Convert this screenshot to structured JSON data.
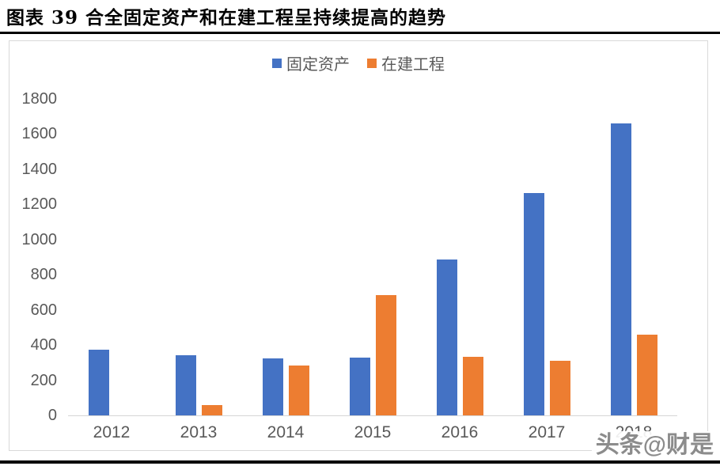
{
  "page": {
    "title": "图表 39 合全固定资产和在建工程呈持续提高的趋势",
    "watermark": "头条@财是"
  },
  "chart_data": {
    "type": "bar",
    "title": "",
    "categories": [
      "2012",
      "2013",
      "2014",
      "2015",
      "2016",
      "2017",
      "2018"
    ],
    "series": [
      {
        "name": "固定资产",
        "color": "#4472C4",
        "values": [
          375,
          340,
          325,
          330,
          885,
          1265,
          1660
        ]
      },
      {
        "name": "在建工程",
        "color": "#ED7D31",
        "values": [
          0,
          60,
          285,
          685,
          335,
          310,
          460
        ]
      }
    ],
    "xlabel": "",
    "ylabel": "",
    "ylim": [
      0,
      1800
    ],
    "yticks": [
      0,
      200,
      400,
      600,
      800,
      1000,
      1200,
      1400,
      1600,
      1800
    ],
    "grid": false,
    "legend_position": "top-center",
    "axis_line_color": "#d6d6d6",
    "tick_label_color": "#595959"
  }
}
